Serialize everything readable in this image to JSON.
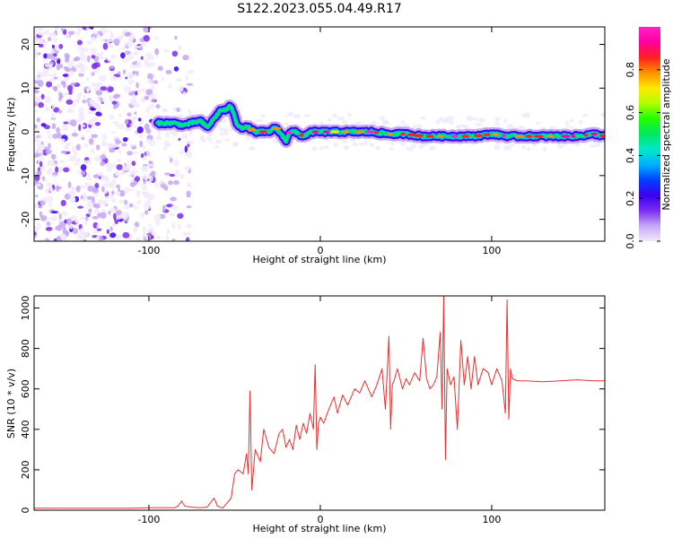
{
  "page": {
    "title": "S122.2023.055.04.49.R17"
  },
  "chart_data": [
    {
      "type": "heatmap",
      "id": "spectrogram",
      "xlabel": "Height of straight line (km)",
      "ylabel": "Frequency (Hz)",
      "xlim": [
        -167,
        166
      ],
      "ylim": [
        -25,
        24
      ],
      "xticks": [
        -100,
        0,
        100
      ],
      "xtick_labels": [
        "-100",
        "0",
        "100"
      ],
      "yticks": [
        -20,
        -10,
        0,
        10,
        20
      ],
      "ytick_labels": [
        "-20",
        "-10",
        "0",
        "10",
        "20"
      ],
      "grid": false,
      "noise_region_x": [
        -167,
        -75
      ],
      "signal_start_x": -95,
      "signal_track": {
        "x": [
          -95,
          -90,
          -85,
          -80,
          -75,
          -70,
          -66,
          -62,
          -58,
          -55,
          -52,
          -49,
          -46,
          -42,
          -38,
          -34,
          -30,
          -26,
          -24,
          -22,
          -20,
          -18,
          -15,
          -10,
          -5,
          0,
          10,
          20,
          30,
          40,
          50,
          60,
          70,
          80,
          90,
          100,
          110,
          120,
          130,
          140,
          150,
          160,
          166
        ],
        "y": [
          2,
          2,
          2,
          1.5,
          2,
          2.5,
          1,
          3,
          5,
          5,
          6,
          2,
          1,
          1,
          0,
          0,
          0,
          1,
          0,
          -1,
          -2,
          0,
          0,
          -1,
          0,
          0,
          0,
          0,
          0,
          -0.5,
          -0.5,
          -1,
          -1,
          -1,
          -1,
          -0.5,
          -1,
          -1,
          -1,
          -1,
          -1,
          -0.5,
          -1
        ]
      },
      "colorbar": {
        "label": "Normalized spectral amplitude",
        "range": [
          0,
          1
        ],
        "ticks": [
          0.0,
          0.2,
          0.4,
          0.6,
          0.8
        ],
        "tick_labels": [
          "0.0",
          "0.2",
          "0.4",
          "0.6",
          "0.8"
        ],
        "colors": [
          "#f2eafc",
          "#c6a7f6",
          "#7a2df0",
          "#3b00f0",
          "#0040ff",
          "#00b0ff",
          "#00e8c8",
          "#00e860",
          "#20ff00",
          "#b0ff00",
          "#ffe800",
          "#ff9000",
          "#ff2020",
          "#ff00a0",
          "#ff20c8"
        ]
      }
    },
    {
      "type": "line",
      "id": "snr",
      "xlabel": "Height of straight line (km)",
      "ylabel": "SNR (10 * v/v)",
      "xlim": [
        -167,
        166
      ],
      "ylim": [
        0,
        1060
      ],
      "xticks": [
        -100,
        0,
        100
      ],
      "xtick_labels": [
        "-100",
        "0",
        "100"
      ],
      "yticks": [
        0,
        200,
        400,
        600,
        800,
        1000
      ],
      "ytick_labels": [
        "0",
        "200",
        "400",
        "600",
        "800",
        "1000"
      ],
      "grid": false,
      "series": [
        {
          "color": "#e83030",
          "x": [
            -167,
            -150,
            -130,
            -110,
            -100,
            -92,
            -85,
            -83,
            -81,
            -79,
            -75,
            -70,
            -66,
            -62,
            -60,
            -57,
            -55,
            -52,
            -50,
            -48,
            -45,
            -43,
            -42,
            -41,
            -40,
            -38,
            -35,
            -33,
            -30,
            -27,
            -24,
            -22,
            -20,
            -18,
            -16,
            -14,
            -12,
            -10,
            -8,
            -6,
            -4,
            -3,
            -2,
            -1,
            0,
            2,
            5,
            8,
            10,
            13,
            16,
            20,
            23,
            26,
            30,
            33,
            36,
            38,
            40,
            41,
            42,
            43,
            45,
            48,
            50,
            52,
            55,
            58,
            60,
            62,
            64,
            66,
            68,
            70,
            71,
            72,
            73,
            74,
            76,
            78,
            80,
            82,
            84,
            86,
            88,
            90,
            92,
            95,
            98,
            100,
            103,
            106,
            108,
            109,
            110,
            111,
            112,
            115,
            120,
            130,
            140,
            150,
            160,
            166
          ],
          "y": [
            10,
            10,
            10,
            10,
            12,
            12,
            12,
            20,
            45,
            20,
            15,
            12,
            15,
            60,
            20,
            10,
            30,
            60,
            180,
            200,
            180,
            280,
            180,
            590,
            100,
            300,
            240,
            400,
            310,
            280,
            380,
            400,
            310,
            350,
            300,
            420,
            350,
            430,
            380,
            480,
            400,
            720,
            300,
            430,
            460,
            430,
            500,
            560,
            480,
            570,
            520,
            600,
            580,
            640,
            560,
            620,
            700,
            500,
            860,
            400,
            620,
            640,
            700,
            600,
            650,
            620,
            680,
            640,
            850,
            650,
            600,
            620,
            660,
            880,
            500,
            1060,
            250,
            700,
            620,
            660,
            400,
            840,
            620,
            760,
            600,
            760,
            620,
            700,
            680,
            620,
            700,
            640,
            480,
            1040,
            450,
            700,
            650,
            640,
            640,
            635,
            640,
            645,
            640,
            640
          ]
        }
      ]
    }
  ]
}
